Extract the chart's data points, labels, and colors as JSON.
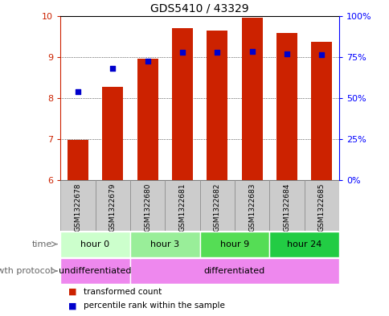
{
  "title": "GDS5410 / 43329",
  "samples": [
    "GSM1322678",
    "GSM1322679",
    "GSM1322680",
    "GSM1322681",
    "GSM1322682",
    "GSM1322683",
    "GSM1322684",
    "GSM1322685"
  ],
  "bar_tops": [
    6.97,
    8.28,
    8.95,
    9.69,
    9.65,
    9.96,
    9.59,
    9.36
  ],
  "bar_bottom": 6,
  "percentile_values": [
    8.15,
    8.72,
    8.9,
    9.12,
    9.11,
    9.14,
    9.07,
    9.06
  ],
  "bar_color": "#CC2200",
  "percentile_color": "#0000CC",
  "ylim": [
    6,
    10
  ],
  "yticks_left": [
    6,
    7,
    8,
    9,
    10
  ],
  "right_tick_labels": [
    "0%",
    "25%",
    "50%",
    "75%",
    "100%"
  ],
  "time_groups": [
    {
      "label": "hour 0",
      "start": 0,
      "end": 2,
      "color": "#CCFFCC"
    },
    {
      "label": "hour 3",
      "start": 2,
      "end": 4,
      "color": "#99EE99"
    },
    {
      "label": "hour 9",
      "start": 4,
      "end": 6,
      "color": "#55DD55"
    },
    {
      "label": "hour 24",
      "start": 6,
      "end": 8,
      "color": "#22CC44"
    }
  ],
  "protocol_groups": [
    {
      "label": "undifferentiated",
      "start": 0,
      "end": 2,
      "color": "#EE88EE"
    },
    {
      "label": "differentiated",
      "start": 2,
      "end": 8,
      "color": "#EE88EE"
    }
  ],
  "legend_bar_label": "transformed count",
  "legend_pct_label": "percentile rank within the sample",
  "time_label": "time",
  "protocol_label": "growth protocol",
  "sample_box_color": "#CCCCCC",
  "sample_box_border": "#888888"
}
